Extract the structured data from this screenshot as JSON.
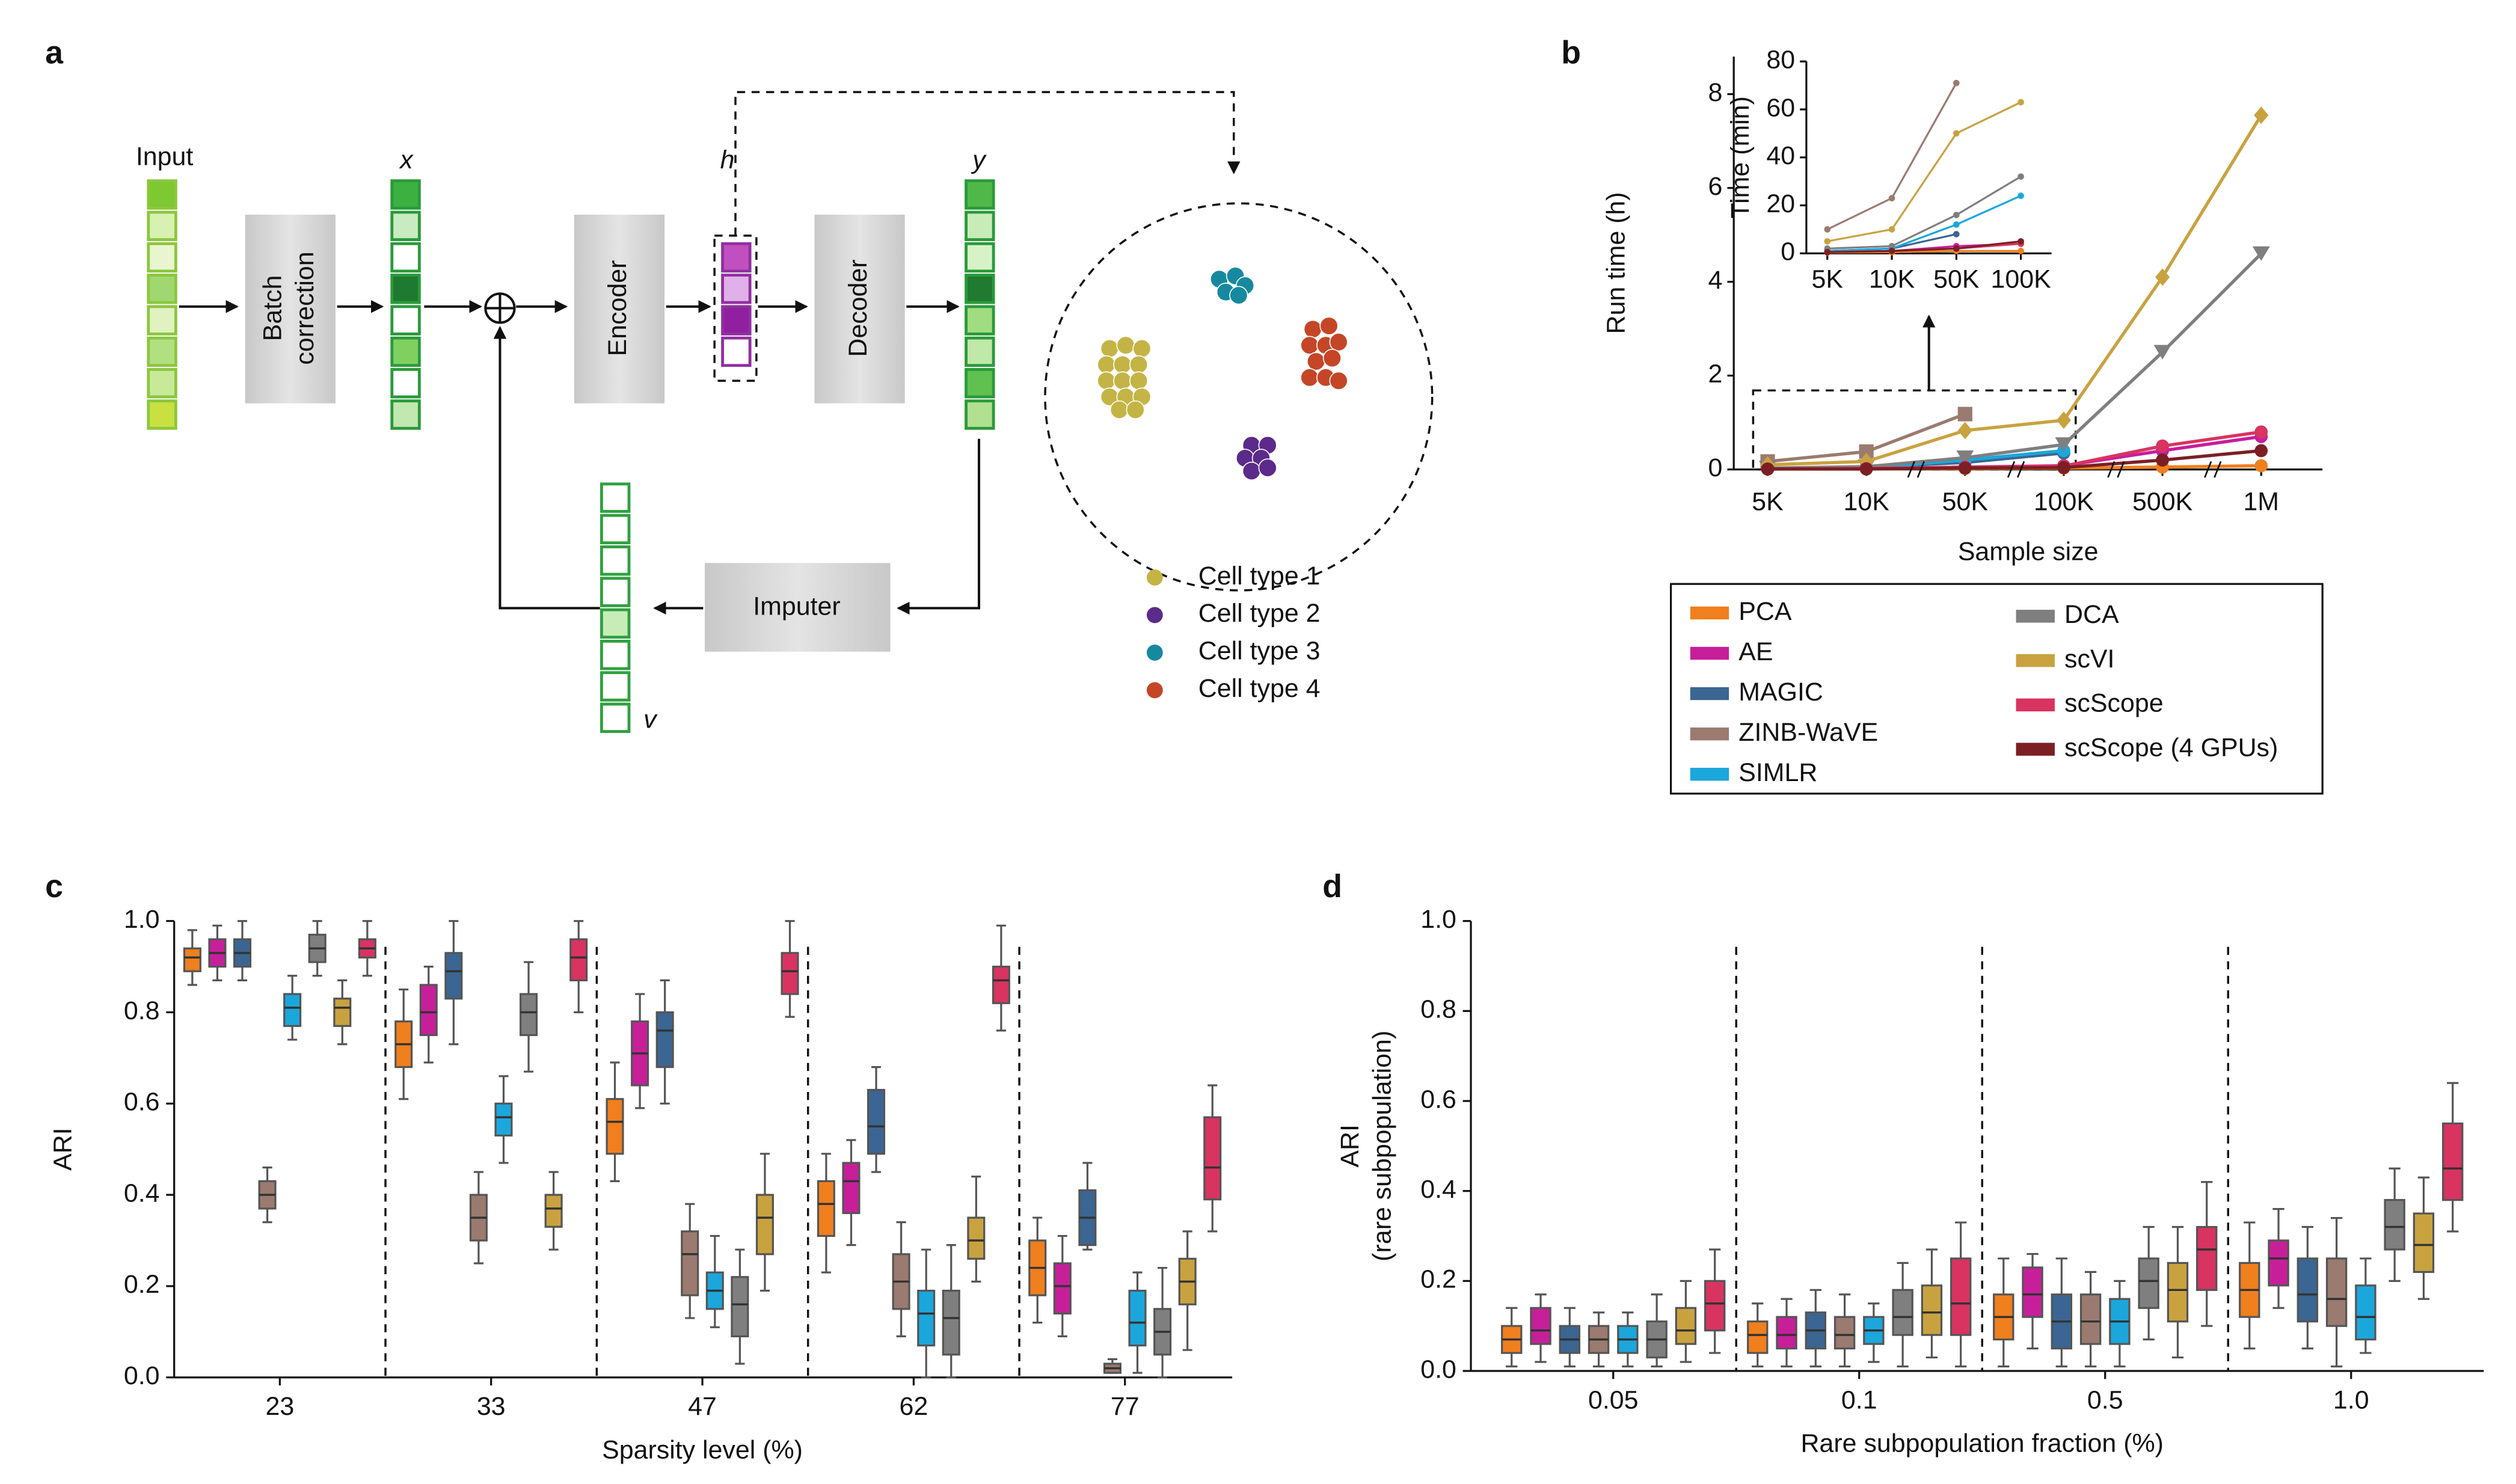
{
  "diagram": {
    "label": "a",
    "input": "Input",
    "batch_correction": [
      "Batch",
      "correction"
    ],
    "x": "x",
    "h": "h",
    "y": "y",
    "v": "v",
    "encoder": "Encoder",
    "decoder": "Decoder",
    "imputer": "Imputer",
    "cell_types": [
      {
        "name": "Cell type 1",
        "color": "#c4b445"
      },
      {
        "name": "Cell type 2",
        "color": "#5c2a8a"
      },
      {
        "name": "Cell type 3",
        "color": "#17899e"
      },
      {
        "name": "Cell type 4",
        "color": "#c44627"
      }
    ]
  },
  "chart_data": [
    {
      "type": "line",
      "panel": "b",
      "xlabel": "Sample size",
      "ylabel": "Run time (h)",
      "categories": [
        "5K",
        "10K",
        "50K",
        "100K",
        "500K",
        "1M"
      ],
      "ylim": [
        0,
        8.8
      ],
      "yticks": [
        0,
        2,
        4,
        6,
        8
      ],
      "series": [
        {
          "name": "PCA",
          "color": "#f07f1e",
          "marker": "circle",
          "values": [
            0.01,
            0.01,
            0.02,
            0.03,
            0.05,
            0.08
          ]
        },
        {
          "name": "AE",
          "color": "#c71f9a",
          "marker": "circle",
          "values": [
            0.01,
            0.02,
            0.05,
            0.08,
            0.4,
            0.7
          ]
        },
        {
          "name": "MAGIC",
          "color": "#3b6592",
          "marker": "circle",
          "values": [
            0.02,
            0.05,
            0.15,
            0.35,
            null,
            null
          ]
        },
        {
          "name": "ZINB-WaVE",
          "color": "#9b7b6f",
          "marker": "square",
          "values": [
            0.17,
            0.38,
            1.18,
            null,
            null,
            null
          ]
        },
        {
          "name": "SIMLR",
          "color": "#1ba7dc",
          "marker": "circle",
          "values": [
            0.01,
            0.03,
            0.2,
            0.4,
            null,
            null
          ]
        },
        {
          "name": "DCA",
          "color": "#7f7f7f",
          "marker": "triangle",
          "values": [
            0.03,
            0.06,
            0.25,
            0.53,
            2.5,
            4.6
          ]
        },
        {
          "name": "scVI",
          "color": "#c9a240",
          "marker": "diamond",
          "values": [
            0.1,
            0.17,
            0.83,
            1.05,
            4.1,
            7.55
          ]
        },
        {
          "name": "scScope",
          "color": "#d93361",
          "marker": "circle",
          "values": [
            0.01,
            0.02,
            0.05,
            0.07,
            0.5,
            0.8
          ]
        },
        {
          "name": "scScope (4 GPUs)",
          "color": "#7b1f24",
          "marker": "circle",
          "values": [
            0.01,
            0.01,
            0.03,
            0.04,
            0.2,
            0.4
          ]
        }
      ]
    },
    {
      "type": "line",
      "ylabel": "Time (min)",
      "categories": [
        "5K",
        "10K",
        "50K",
        "100K"
      ],
      "ylim": [
        0,
        80
      ],
      "yticks": [
        0,
        20,
        40,
        60,
        80
      ],
      "series": [
        {
          "color": "#f07f1e",
          "values": [
            0.3,
            0.5,
            1,
            1
          ]
        },
        {
          "color": "#c71f9a",
          "values": [
            0.5,
            1,
            3,
            4
          ]
        },
        {
          "color": "#3b6592",
          "values": [
            1,
            2,
            8,
            null
          ]
        },
        {
          "color": "#9b7b6f",
          "values": [
            10,
            23,
            71,
            null
          ]
        },
        {
          "color": "#1ba7dc",
          "values": [
            1,
            2,
            12,
            24
          ]
        },
        {
          "color": "#7f7f7f",
          "values": [
            2,
            3,
            16,
            32
          ]
        },
        {
          "color": "#c9a240",
          "values": [
            5,
            10,
            50,
            63
          ]
        },
        {
          "color": "#d93361",
          "values": [
            0.5,
            1,
            2,
            4
          ]
        },
        {
          "color": "#7b1f24",
          "values": [
            0.5,
            1,
            2,
            5
          ]
        }
      ]
    },
    {
      "type": "box",
      "panel": "c",
      "xlabel": "Sparsity level (%)",
      "ylabel": [
        "ARI"
      ],
      "categories": [
        "23",
        "33",
        "47",
        "62",
        "77"
      ],
      "ylim": [
        0,
        1.0
      ],
      "yticks": [
        {
          "value": 0,
          "label": "0.0"
        },
        0.2,
        0.4,
        0.6,
        0.8,
        {
          "value": 1,
          "label": "1.0"
        }
      ],
      "series": [
        {
          "color": "#f07f1e",
          "values": [
            [
              0.86,
              0.89,
              0.92,
              0.94,
              0.98
            ],
            [
              0.61,
              0.68,
              0.73,
              0.78,
              0.85
            ],
            [
              0.43,
              0.49,
              0.56,
              0.61,
              0.69
            ],
            [
              0.23,
              0.31,
              0.38,
              0.43,
              0.49
            ],
            [
              0.12,
              0.18,
              0.24,
              0.3,
              0.35
            ]
          ]
        },
        {
          "color": "#c71f9a",
          "values": [
            [
              0.87,
              0.9,
              0.93,
              0.96,
              0.99
            ],
            [
              0.69,
              0.75,
              0.8,
              0.86,
              0.9
            ],
            [
              0.59,
              0.64,
              0.71,
              0.78,
              0.84
            ],
            [
              0.29,
              0.36,
              0.43,
              0.47,
              0.52
            ],
            [
              0.09,
              0.14,
              0.2,
              0.25,
              0.31
            ]
          ]
        },
        {
          "color": "#3b6592",
          "values": [
            [
              0.87,
              0.9,
              0.93,
              0.96,
              1.0
            ],
            [
              0.73,
              0.83,
              0.89,
              0.93,
              1.0
            ],
            [
              0.6,
              0.68,
              0.76,
              0.8,
              0.87
            ],
            [
              0.45,
              0.49,
              0.55,
              0.63,
              0.68
            ],
            [
              0.28,
              0.29,
              0.35,
              0.41,
              0.47
            ]
          ]
        },
        {
          "color": "#9b7b6f",
          "values": [
            [
              0.34,
              0.37,
              0.4,
              0.43,
              0.46
            ],
            [
              0.25,
              0.3,
              0.35,
              0.4,
              0.45
            ],
            [
              0.13,
              0.18,
              0.27,
              0.32,
              0.38
            ],
            [
              0.09,
              0.15,
              0.21,
              0.27,
              0.34
            ],
            [
              0.01,
              0.01,
              0.02,
              0.03,
              0.04
            ]
          ]
        },
        {
          "color": "#1ba7dc",
          "values": [
            [
              0.74,
              0.77,
              0.81,
              0.84,
              0.88
            ],
            [
              0.47,
              0.53,
              0.57,
              0.6,
              0.66
            ],
            [
              0.11,
              0.15,
              0.19,
              0.23,
              0.31
            ],
            [
              0.0,
              0.07,
              0.14,
              0.19,
              0.28
            ],
            [
              0.01,
              0.07,
              0.12,
              0.19,
              0.23
            ]
          ]
        },
        {
          "color": "#7f7f7f",
          "values": [
            [
              0.88,
              0.91,
              0.94,
              0.97,
              1.0
            ],
            [
              0.67,
              0.75,
              0.8,
              0.84,
              0.91
            ],
            [
              0.03,
              0.09,
              0.16,
              0.22,
              0.28
            ],
            [
              0.0,
              0.05,
              0.13,
              0.19,
              0.29
            ],
            [
              0.0,
              0.05,
              0.1,
              0.15,
              0.24
            ]
          ]
        },
        {
          "color": "#c9a240",
          "values": [
            [
              0.73,
              0.77,
              0.81,
              0.83,
              0.87
            ],
            [
              0.28,
              0.33,
              0.37,
              0.4,
              0.45
            ],
            [
              0.19,
              0.27,
              0.35,
              0.4,
              0.49
            ],
            [
              0.21,
              0.26,
              0.3,
              0.35,
              0.44
            ],
            [
              0.06,
              0.16,
              0.21,
              0.26,
              0.32
            ]
          ]
        },
        {
          "color": "#d93361",
          "values": [
            [
              0.88,
              0.92,
              0.94,
              0.96,
              1.0
            ],
            [
              0.8,
              0.87,
              0.92,
              0.96,
              1.0
            ],
            [
              0.79,
              0.84,
              0.89,
              0.93,
              1.0
            ],
            [
              0.76,
              0.82,
              0.87,
              0.9,
              0.99
            ],
            [
              0.32,
              0.39,
              0.46,
              0.57,
              0.64
            ]
          ]
        }
      ]
    },
    {
      "type": "box",
      "panel": "d",
      "xlabel": "Rare subpopulation fraction (%)",
      "ylabel": [
        "ARI",
        "(rare subpopulation)"
      ],
      "categories": [
        "0.05",
        "0.1",
        "0.5",
        "1.0"
      ],
      "ylim": [
        0,
        1.0
      ],
      "yticks": [
        {
          "value": 0,
          "label": "0.0"
        },
        0.2,
        0.4,
        0.6,
        0.8,
        {
          "value": 1,
          "label": "1.0"
        }
      ],
      "series": [
        {
          "color": "#f07f1e",
          "values": [
            [
              0.01,
              0.04,
              0.07,
              0.1,
              0.14
            ],
            [
              0.01,
              0.04,
              0.08,
              0.11,
              0.15
            ],
            [
              0.01,
              0.07,
              0.12,
              0.17,
              0.25
            ],
            [
              0.05,
              0.12,
              0.18,
              0.24,
              0.33
            ]
          ]
        },
        {
          "color": "#c71f9a",
          "values": [
            [
              0.02,
              0.06,
              0.09,
              0.14,
              0.17
            ],
            [
              0.01,
              0.05,
              0.08,
              0.12,
              0.16
            ],
            [
              0.05,
              0.12,
              0.17,
              0.23,
              0.26
            ],
            [
              0.14,
              0.19,
              0.25,
              0.29,
              0.36
            ]
          ]
        },
        {
          "color": "#3b6592",
          "values": [
            [
              0.01,
              0.04,
              0.07,
              0.1,
              0.14
            ],
            [
              0.01,
              0.05,
              0.09,
              0.13,
              0.18
            ],
            [
              0.01,
              0.05,
              0.11,
              0.17,
              0.25
            ],
            [
              0.05,
              0.11,
              0.17,
              0.25,
              0.32
            ]
          ]
        },
        {
          "color": "#9b7b6f",
          "values": [
            [
              0.01,
              0.04,
              0.07,
              0.1,
              0.13
            ],
            [
              0.01,
              0.05,
              0.08,
              0.12,
              0.17
            ],
            [
              0.01,
              0.06,
              0.11,
              0.17,
              0.22
            ],
            [
              0.01,
              0.1,
              0.16,
              0.25,
              0.34
            ]
          ]
        },
        {
          "color": "#1ba7dc",
          "values": [
            [
              0.01,
              0.04,
              0.07,
              0.1,
              0.13
            ],
            [
              0.02,
              0.06,
              0.09,
              0.12,
              0.15
            ],
            [
              0.01,
              0.06,
              0.11,
              0.16,
              0.2
            ],
            [
              0.04,
              0.07,
              0.12,
              0.19,
              0.25
            ]
          ]
        },
        {
          "color": "#7f7f7f",
          "values": [
            [
              0.01,
              0.03,
              0.07,
              0.11,
              0.17
            ],
            [
              0.01,
              0.08,
              0.12,
              0.18,
              0.24
            ],
            [
              0.07,
              0.14,
              0.2,
              0.25,
              0.32
            ],
            [
              0.2,
              0.27,
              0.32,
              0.38,
              0.45
            ]
          ]
        },
        {
          "color": "#c9a240",
          "values": [
            [
              0.02,
              0.06,
              0.09,
              0.14,
              0.2
            ],
            [
              0.03,
              0.08,
              0.13,
              0.19,
              0.27
            ],
            [
              0.03,
              0.11,
              0.18,
              0.24,
              0.32
            ],
            [
              0.16,
              0.22,
              0.28,
              0.35,
              0.43
            ]
          ]
        },
        {
          "color": "#d93361",
          "values": [
            [
              0.04,
              0.09,
              0.15,
              0.2,
              0.27
            ],
            [
              0.01,
              0.08,
              0.15,
              0.25,
              0.33
            ],
            [
              0.1,
              0.18,
              0.27,
              0.32,
              0.42
            ],
            [
              0.31,
              0.38,
              0.45,
              0.55,
              0.64
            ]
          ]
        }
      ]
    }
  ]
}
